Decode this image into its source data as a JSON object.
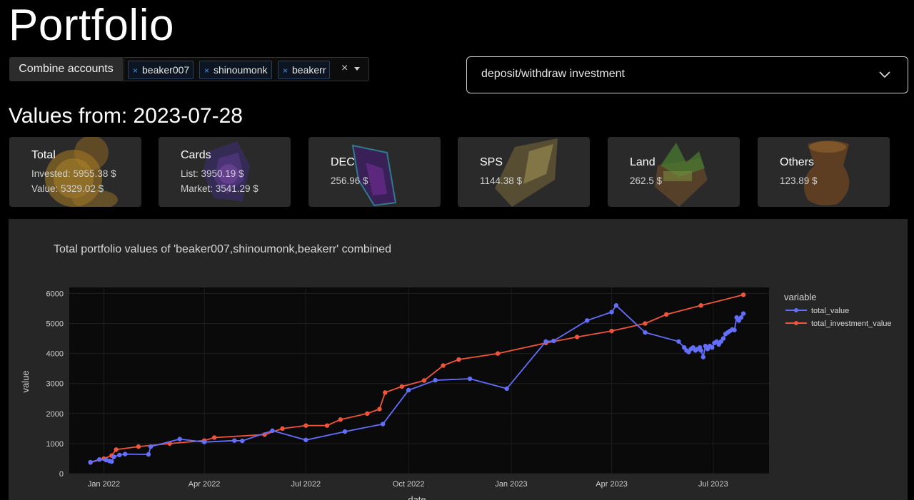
{
  "page": {
    "title": "Portfolio"
  },
  "accounts": {
    "combine_label": "Combine accounts",
    "selected": [
      "beaker007",
      "shinoumonk",
      "beakerr"
    ],
    "remove_glyph": "×",
    "clear_glyph": "×"
  },
  "mode_dropdown": {
    "value": "deposit/withdraw investment"
  },
  "values_header": "Values from: 2023-07-28",
  "summary_cards": [
    {
      "title": "Total",
      "lines": [
        "Invested: 5955.38 $",
        "Value: 5329.02 $"
      ]
    },
    {
      "title": "Cards",
      "lines": [
        "List: 3950.19 $",
        "Market: 3541.29 $"
      ]
    },
    {
      "title": "DEC",
      "lines": [
        "256.96 $"
      ]
    },
    {
      "title": "SPS",
      "lines": [
        "1144.38 $"
      ]
    },
    {
      "title": "Land",
      "lines": [
        "262.5 $"
      ]
    },
    {
      "title": "Others",
      "lines": [
        "123.89 $"
      ]
    }
  ],
  "colors": {
    "total_value": "#636efa",
    "total_investment_value": "#ef553b",
    "plot_bg": "#0a0a0a",
    "panel_bg": "#262626"
  },
  "chart_data": {
    "type": "line",
    "title": "Total portfolio values of 'beaker007,shinoumonk,beakerr' combined",
    "xlabel": "date",
    "ylabel": "value",
    "legend_title": "variable",
    "legend_position": "right",
    "x_ticks": [
      "Jan 2022",
      "Apr 2022",
      "Jul 2022",
      "Oct 2022",
      "Jan 2023",
      "Apr 2023",
      "Jul 2023"
    ],
    "y_ticks": [
      "0",
      "1000",
      "2000",
      "3000",
      "4000",
      "5000",
      "6000"
    ],
    "ylim": [
      0,
      6200
    ],
    "xlim": [
      "2021-12-01",
      "2023-08-20"
    ],
    "series": [
      {
        "name": "total_value",
        "points": [
          [
            "2021-12-20",
            380
          ],
          [
            "2021-12-28",
            470
          ],
          [
            "2022-01-03",
            450
          ],
          [
            "2022-01-06",
            420
          ],
          [
            "2022-01-08",
            400
          ],
          [
            "2022-01-10",
            560
          ],
          [
            "2022-01-15",
            620
          ],
          [
            "2022-01-20",
            650
          ],
          [
            "2022-02-10",
            640
          ],
          [
            "2022-02-12",
            900
          ],
          [
            "2022-03-10",
            1150
          ],
          [
            "2022-04-01",
            1050
          ],
          [
            "2022-04-28",
            1100
          ],
          [
            "2022-05-05",
            1090
          ],
          [
            "2022-06-01",
            1430
          ],
          [
            "2022-07-01",
            1120
          ],
          [
            "2022-08-05",
            1400
          ],
          [
            "2022-09-08",
            1650
          ],
          [
            "2022-10-01",
            2780
          ],
          [
            "2022-10-25",
            3110
          ],
          [
            "2022-11-25",
            3160
          ],
          [
            "2022-12-28",
            2830
          ],
          [
            "2023-02-01",
            4400
          ],
          [
            "2023-02-08",
            4420
          ],
          [
            "2023-03-10",
            5100
          ],
          [
            "2023-04-01",
            5380
          ],
          [
            "2023-04-05",
            5600
          ],
          [
            "2023-05-01",
            4700
          ],
          [
            "2023-05-31",
            4400
          ],
          [
            "2023-06-05",
            4200
          ],
          [
            "2023-06-07",
            4100
          ],
          [
            "2023-06-09",
            4050
          ],
          [
            "2023-06-11",
            4150
          ],
          [
            "2023-06-13",
            4200
          ],
          [
            "2023-06-15",
            4100
          ],
          [
            "2023-06-17",
            4150
          ],
          [
            "2023-06-19",
            4200
          ],
          [
            "2023-06-20",
            4100
          ],
          [
            "2023-06-22",
            3880
          ],
          [
            "2023-06-24",
            4250
          ],
          [
            "2023-06-26",
            4150
          ],
          [
            "2023-06-28",
            4250
          ],
          [
            "2023-06-30",
            4200
          ],
          [
            "2023-07-02",
            4350
          ],
          [
            "2023-07-04",
            4400
          ],
          [
            "2023-07-06",
            4300
          ],
          [
            "2023-07-08",
            4400
          ],
          [
            "2023-07-10",
            4500
          ],
          [
            "2023-07-12",
            4650
          ],
          [
            "2023-07-14",
            4700
          ],
          [
            "2023-07-16",
            4750
          ],
          [
            "2023-07-18",
            4800
          ],
          [
            "2023-07-20",
            4780
          ],
          [
            "2023-07-22",
            5200
          ],
          [
            "2023-07-24",
            5100
          ],
          [
            "2023-07-26",
            5200
          ],
          [
            "2023-07-28",
            5329
          ]
        ]
      },
      {
        "name": "total_investment_value",
        "points": [
          [
            "2021-12-20",
            370
          ],
          [
            "2022-01-01",
            500
          ],
          [
            "2022-01-08",
            600
          ],
          [
            "2022-01-12",
            800
          ],
          [
            "2022-02-01",
            900
          ],
          [
            "2022-03-01",
            1000
          ],
          [
            "2022-04-01",
            1100
          ],
          [
            "2022-04-10",
            1200
          ],
          [
            "2022-05-25",
            1300
          ],
          [
            "2022-06-10",
            1500
          ],
          [
            "2022-07-01",
            1600
          ],
          [
            "2022-07-20",
            1600
          ],
          [
            "2022-08-01",
            1800
          ],
          [
            "2022-08-25",
            2000
          ],
          [
            "2022-09-05",
            2150
          ],
          [
            "2022-09-10",
            2700
          ],
          [
            "2022-09-25",
            2900
          ],
          [
            "2022-10-15",
            3100
          ],
          [
            "2022-11-01",
            3600
          ],
          [
            "2022-11-15",
            3800
          ],
          [
            "2022-12-20",
            4000
          ],
          [
            "2023-02-01",
            4350
          ],
          [
            "2023-03-01",
            4550
          ],
          [
            "2023-04-01",
            4750
          ],
          [
            "2023-05-01",
            5000
          ],
          [
            "2023-05-20",
            5300
          ],
          [
            "2023-06-20",
            5600
          ],
          [
            "2023-07-28",
            5955
          ]
        ]
      }
    ]
  }
}
